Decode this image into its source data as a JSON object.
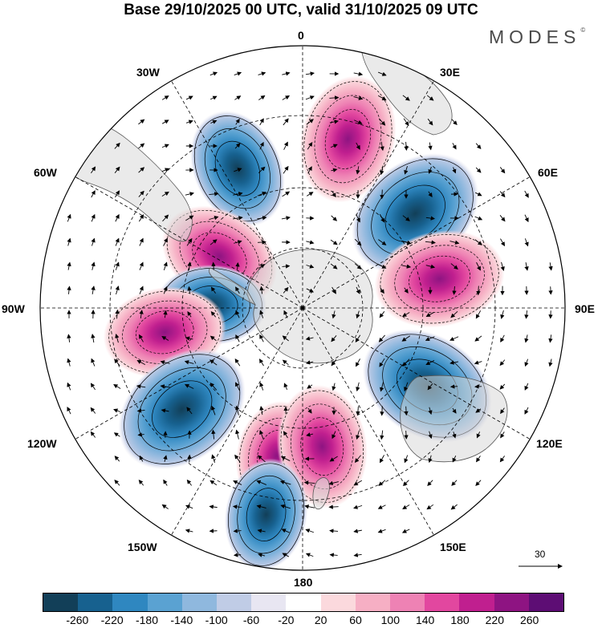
{
  "title": "Base 29/10/2025 00 UTC, valid 31/10/2025 09 UTC",
  "brand": "MODES",
  "brand_mark": "©",
  "longitude_labels": {
    "lon_0": "0",
    "lon_30e": "30E",
    "lon_60e": "60E",
    "lon_90e": "90E",
    "lon_120e": "120E",
    "lon_150e": "150E",
    "lon_180": "180",
    "lon_150w": "150W",
    "lon_120w": "120W",
    "lon_90w": "90W",
    "lon_60w": "60W",
    "lon_30w": "30W"
  },
  "reference_arrow_label": "30",
  "colorbar": {
    "labels": [
      "-260",
      "-220",
      "-180",
      "-140",
      "-100",
      "-60",
      "-20",
      "20",
      "60",
      "100",
      "140",
      "180",
      "220",
      "260"
    ],
    "colors": [
      "#123f58",
      "#17618f",
      "#2f87c0",
      "#5aa2d2",
      "#8fb8de",
      "#c0cce6",
      "#e8e6f2",
      "#ffffff",
      "#fbd9dd",
      "#f6afc4",
      "#ee82b4",
      "#e2479f",
      "#c01f8f",
      "#8e1482",
      "#5d0d74"
    ]
  },
  "anomaly_centers": [
    {
      "sign": "negative",
      "lon": -25,
      "lat": -46,
      "value": -190
    },
    {
      "sign": "positive",
      "lon": 15,
      "lat": -40,
      "value": 220
    },
    {
      "sign": "negative",
      "lon": 50,
      "lat": -48,
      "value": -270
    },
    {
      "sign": "positive",
      "lon": 78,
      "lat": -50,
      "value": 230
    },
    {
      "sign": "positive",
      "lon": -58,
      "lat": -62,
      "value": 200
    },
    {
      "sign": "negative",
      "lon": -88,
      "lat": -64,
      "value": -150
    },
    {
      "sign": "positive",
      "lon": -100,
      "lat": -50,
      "value": 200
    },
    {
      "sign": "negative",
      "lon": -130,
      "lat": -45,
      "value": -270
    },
    {
      "sign": "positive",
      "lon": -170,
      "lat": -47,
      "value": 150
    },
    {
      "sign": "positive",
      "lon": 172,
      "lat": -50,
      "value": 200
    },
    {
      "sign": "negative",
      "lon": 122,
      "lat": -48,
      "value": -260
    },
    {
      "sign": "negative",
      "lon": -170,
      "lat": -30,
      "value": -160
    }
  ]
}
